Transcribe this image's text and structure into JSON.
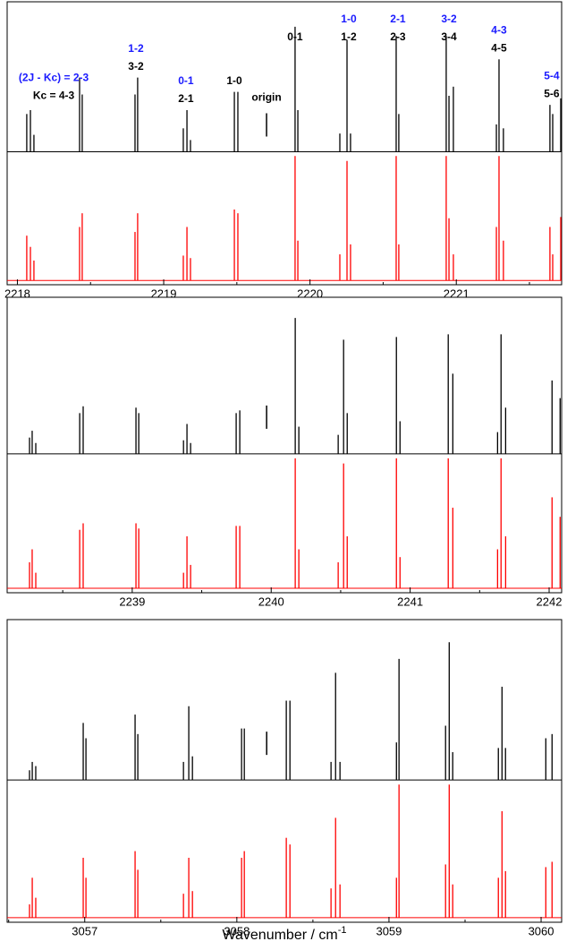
{
  "chart_data": [
    {
      "type": "stick",
      "xlim": [
        2217.93,
        2221.72
      ],
      "xticks": [
        2218,
        2219,
        2220,
        2221
      ],
      "ylim": [
        0,
        100
      ],
      "x": [
        2218.064,
        2218.089,
        2218.113,
        2218.425,
        2218.443,
        2218.804,
        2218.822,
        2219.134,
        2219.159,
        2219.183,
        2219.483,
        2219.507,
        2219.898,
        2219.917,
        2220.204,
        2220.253,
        2220.277,
        2220.589,
        2220.607,
        2220.931,
        2220.95,
        2220.98,
        2221.274,
        2221.292,
        2221.322,
        2221.64,
        2221.659,
        2221.714
      ],
      "series": [
        {
          "color": "#000000",
          "values": [
            29,
            32,
            13,
            57,
            44,
            44,
            57,
            18,
            32,
            9,
            46,
            46,
            96,
            32,
            14,
            86,
            14,
            89,
            29,
            89,
            43,
            50,
            21,
            71,
            18,
            36,
            29,
            41
          ]
        },
        {
          "color": "#ff0000",
          "values": [
            36,
            27,
            16,
            43,
            54,
            39,
            54,
            20,
            43,
            18,
            57,
            54,
            100,
            32,
            21,
            96,
            29,
            100,
            29,
            100,
            50,
            21,
            43,
            100,
            32,
            43,
            21,
            51
          ]
        }
      ],
      "marker": 2219.703,
      "annotations": [
        {
          "x": 2218.248,
          "upper": "(2J - Kc) = 2-3",
          "lower": "Kc = 4-3"
        },
        {
          "x": 2218.81,
          "upper": "1-2",
          "lower": "3-2"
        },
        {
          "x": 2219.152,
          "upper": "0-1",
          "lower": "2-1"
        },
        {
          "x": 2219.483,
          "lower": "1-0"
        },
        {
          "x": 2219.703,
          "lower": "origin"
        },
        {
          "x": 2219.898,
          "lower": "0-1"
        },
        {
          "x": 2220.265,
          "upper": "1-0",
          "lower": "1-2"
        },
        {
          "x": 2220.601,
          "upper": "2-1",
          "lower": "2-3"
        },
        {
          "x": 2220.95,
          "upper": "3-2",
          "lower": "3-4"
        },
        {
          "x": 2221.292,
          "upper": "4-3",
          "lower": "4-5"
        },
        {
          "x": 2221.652,
          "upper": "5-4",
          "lower": "5-6"
        }
      ],
      "annotation_colors": [
        "#1a1aff",
        "#000000"
      ]
    },
    {
      "type": "stick",
      "xlim": [
        2238.1,
        2242.09
      ],
      "xticks": [
        2239,
        2240,
        2241,
        2242
      ],
      "ylim": [
        0,
        100
      ],
      "x": [
        2238.261,
        2238.28,
        2238.306,
        2238.622,
        2238.647,
        2239.027,
        2239.047,
        2239.369,
        2239.394,
        2239.42,
        2239.748,
        2239.774,
        2240.173,
        2240.199,
        2240.482,
        2240.521,
        2240.547,
        2240.901,
        2240.927,
        2241.274,
        2241.307,
        2241.629,
        2241.654,
        2241.687,
        2242.021,
        2242.079
      ],
      "series": [
        {
          "color": "#000000",
          "values": [
            12,
            17,
            8,
            30,
            35,
            34,
            30,
            10,
            22,
            8,
            30,
            32,
            100,
            20,
            14,
            84,
            30,
            86,
            24,
            88,
            59,
            16,
            88,
            34,
            54,
            41
          ]
        },
        {
          "color": "#ff0000",
          "values": [
            20,
            30,
            12,
            45,
            50,
            50,
            46,
            12,
            40,
            18,
            48,
            48,
            100,
            30,
            20,
            96,
            40,
            100,
            24,
            100,
            62,
            30,
            100,
            40,
            70,
            55
          ]
        }
      ],
      "marker": 2239.967
    },
    {
      "type": "stick",
      "xlim": [
        3056.49,
        3060.135
      ],
      "xticks": [
        3057,
        3058,
        3059,
        3060
      ],
      "ylim": [
        0,
        100
      ],
      "x_label": "Wavenumber / cm",
      "x_label_sup": "-1",
      "x": [
        3056.637,
        3056.655,
        3056.678,
        3056.99,
        3057.008,
        3057.331,
        3057.349,
        3057.649,
        3057.684,
        3057.708,
        3058.031,
        3058.049,
        3058.325,
        3058.349,
        3058.619,
        3058.649,
        3058.678,
        3059.049,
        3059.066,
        3059.372,
        3059.396,
        3059.419,
        3059.719,
        3059.743,
        3059.766,
        3060.031,
        3060.072
      ],
      "series": [
        {
          "color": "#000000",
          "values": [
            7,
            13,
            10,
            41,
            30,
            47,
            33,
            13,
            53,
            17,
            37,
            37,
            57,
            57,
            13,
            77,
            13,
            27,
            87,
            39,
            99,
            20,
            23,
            67,
            23,
            30,
            33
          ]
        },
        {
          "color": "#ff0000",
          "values": [
            10,
            30,
            15,
            45,
            30,
            50,
            36,
            18,
            45,
            20,
            45,
            50,
            60,
            55,
            22,
            75,
            25,
            30,
            100,
            40,
            100,
            25,
            30,
            80,
            35,
            38,
            42
          ]
        }
      ],
      "marker": 3058.196
    }
  ]
}
